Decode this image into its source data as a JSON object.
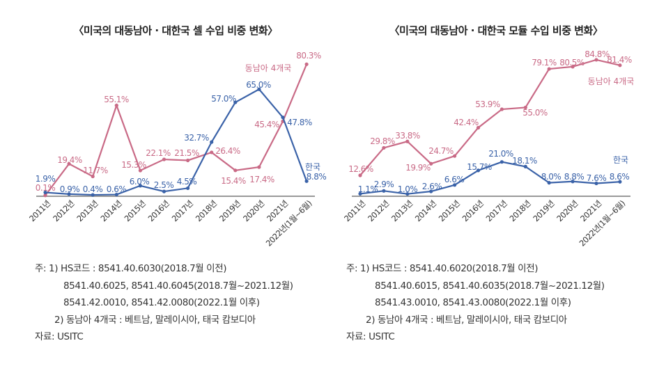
{
  "chart_data": [
    {
      "type": "line",
      "title": "〈미국의 대동남아 · 대한국 셀 수입 비중 변화〉",
      "categories": [
        "2011년",
        "2012년",
        "2013년",
        "2014년",
        "2015년",
        "2016년",
        "2017년",
        "2018년",
        "2019년",
        "2020년",
        "2021년",
        "2022년(1월~6월)"
      ],
      "series": [
        {
          "name": "동남아 4개국",
          "color": "#c96a86",
          "values": [
            0.1,
            19.4,
            11.7,
            55.1,
            15.3,
            22.1,
            21.5,
            26.4,
            15.4,
            17.4,
            45.4,
            80.3
          ],
          "labels": [
            "0.1%",
            "19.4%",
            "11.7%",
            "55.1%",
            "15.3%",
            "22.1%",
            "21.5%",
            "26.4%",
            "15.4%",
            "17.4%",
            "45.4%",
            "80.3%"
          ]
        },
        {
          "name": "한국",
          "color": "#3a62a8",
          "values": [
            1.9,
            0.9,
            0.4,
            0.6,
            6.0,
            2.5,
            4.5,
            32.7,
            57.0,
            65.0,
            47.8,
            8.8
          ],
          "labels": [
            "1.9%",
            "0.9%",
            "0.4%",
            "0.6%",
            "6.0%",
            "2.5%",
            "4.5%",
            "32.7%",
            "57.0%",
            "65.0%",
            "47.8%",
            "8.8%"
          ]
        }
      ],
      "unit": "%",
      "grid": false,
      "legend": "inline labels"
    },
    {
      "type": "line",
      "title": "〈미국의 대동남아 · 대한국 모듈 수입 비중 변화〉",
      "categories": [
        "2011년",
        "2012년",
        "2013년",
        "2014년",
        "2015년",
        "2016년",
        "2017년",
        "2018년",
        "2019년",
        "2020년",
        "2021년",
        "2022년(1월~6월)"
      ],
      "series": [
        {
          "name": "동남아 4개국",
          "color": "#c96a86",
          "values": [
            12.6,
            29.8,
            33.8,
            19.9,
            24.7,
            42.4,
            53.9,
            55.0,
            79.1,
            80.5,
            84.8,
            81.4
          ],
          "labels": [
            "12.6%",
            "29.8%",
            "33.8%",
            "19.9%",
            "24.7%",
            "42.4%",
            "53.9%",
            "55.0%",
            "79.1%",
            "80.5%",
            "84.8%",
            "81.4%"
          ]
        },
        {
          "name": "한국",
          "color": "#3a62a8",
          "values": [
            1.1,
            2.9,
            1.0,
            2.6,
            6.6,
            15.7,
            21.0,
            18.1,
            8.0,
            8.8,
            7.6,
            8.6
          ],
          "labels": [
            "1.1%",
            "2.9%",
            "1.0%",
            "2.6%",
            "6.6%",
            "15.7%",
            "21.0%",
            "18.1%",
            "8.0%",
            "8.8%",
            "7.6%",
            "8.6%"
          ]
        }
      ],
      "unit": "%",
      "grid": false,
      "legend": "inline labels"
    }
  ],
  "notes_left": [
    "주: 1) HS코드 : 8541.40.6030(2018.7월 이전)",
    "8541.40.6025, 8541.40.6045(2018.7월~2021.12월)",
    "8541.42.0010, 8541.42.0080(2022.1월 이후)",
    "2) 동남아 4개국 : 베트남, 말레이시아, 태국 캄보디아",
    "자료: USITC"
  ],
  "notes_right": [
    "주: 1) HS코드 : 8541.40.6020(2018.7월 이전)",
    "8541.40.6015, 8541.40.6035(2018.7월~2021.12월)",
    "8541.43.0010, 8541.43.0080(2022.1월 이후)",
    "2) 동남아 4개국 : 베트남, 말레이시아, 태국 캄보디아",
    "자료: USITC"
  ]
}
